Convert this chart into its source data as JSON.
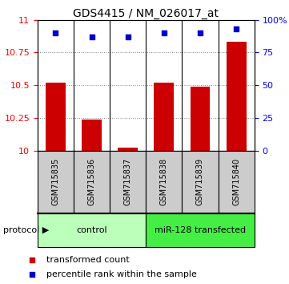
{
  "title": "GDS4415 / NM_026017_at",
  "samples": [
    "GSM715835",
    "GSM715836",
    "GSM715837",
    "GSM715838",
    "GSM715839",
    "GSM715840"
  ],
  "transformed_counts": [
    10.52,
    10.24,
    10.02,
    10.52,
    10.49,
    10.83
  ],
  "percentile_ranks": [
    90,
    87,
    87,
    90,
    90,
    93
  ],
  "ylim_left": [
    10,
    11
  ],
  "ylim_right": [
    0,
    100
  ],
  "yticks_left": [
    10,
    10.25,
    10.5,
    10.75,
    11
  ],
  "yticks_right": [
    0,
    25,
    50,
    75,
    100
  ],
  "ytick_labels_left": [
    "10",
    "10.25",
    "10.5",
    "10.75",
    "11"
  ],
  "ytick_labels_right": [
    "0",
    "25",
    "50",
    "75",
    "100%"
  ],
  "groups": [
    {
      "label": "control",
      "start": 0,
      "end": 3,
      "color": "#bbffbb"
    },
    {
      "label": "miR-128 transfected",
      "start": 3,
      "end": 6,
      "color": "#44ee44"
    }
  ],
  "bar_color": "#cc0000",
  "marker_color": "#0000cc",
  "sample_bg_color": "#cccccc",
  "protocol_label": "protocol",
  "legend_bar_label": "transformed count",
  "legend_marker_label": "percentile rank within the sample",
  "bar_width": 0.55
}
